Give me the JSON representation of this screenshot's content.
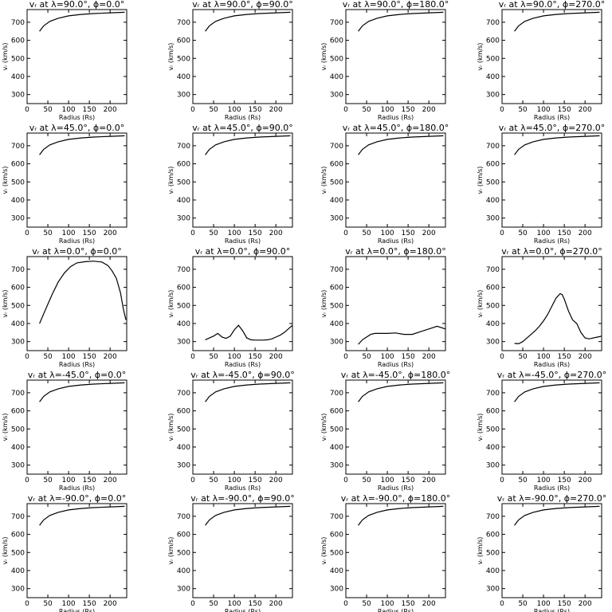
{
  "figure": {
    "y_tick_labels": [
      "300",
      "400",
      "500",
      "600",
      "700"
    ],
    "x_tick_labels": [
      "0",
      "50",
      "100",
      "150",
      "200"
    ],
    "x_axis_label": "Radius (Rs)",
    "y_axis_label": "vᵣ (km/s)"
  },
  "chart_data": [
    {
      "type": "line",
      "title": "vᵣ at λ=90.0°, ϕ=0.0°",
      "xlabel": "Radius (Rs)",
      "ylabel": "vᵣ (km/s)",
      "xlim": [
        0,
        240
      ],
      "ylim": [
        250,
        770
      ],
      "series": [
        {
          "x": [
            30,
            40,
            55,
            75,
            100,
            130,
            160,
            200,
            235
          ],
          "y": [
            650,
            680,
            705,
            722,
            735,
            743,
            748,
            752,
            755
          ]
        }
      ]
    },
    {
      "type": "line",
      "title": "vᵣ at λ=90.0°, ϕ=90.0°",
      "xlabel": "Radius (Rs)",
      "ylabel": "vᵣ (km/s)",
      "xlim": [
        0,
        240
      ],
      "ylim": [
        250,
        770
      ],
      "series": [
        {
          "x": [
            30,
            40,
            55,
            75,
            100,
            130,
            160,
            200,
            235
          ],
          "y": [
            650,
            680,
            705,
            722,
            735,
            743,
            748,
            752,
            755
          ]
        }
      ]
    },
    {
      "type": "line",
      "title": "vᵣ at λ=90.0°, ϕ=180.0°",
      "xlabel": "Radius (Rs)",
      "ylabel": "vᵣ (km/s)",
      "xlim": [
        0,
        240
      ],
      "ylim": [
        250,
        770
      ],
      "series": [
        {
          "x": [
            30,
            40,
            55,
            75,
            100,
            130,
            160,
            200,
            235
          ],
          "y": [
            650,
            680,
            705,
            722,
            735,
            743,
            748,
            752,
            755
          ]
        }
      ]
    },
    {
      "type": "line",
      "title": "vᵣ at λ=90.0°, ϕ=270.0°",
      "xlabel": "Radius (Rs)",
      "ylabel": "vᵣ (km/s)",
      "xlim": [
        0,
        240
      ],
      "ylim": [
        250,
        770
      ],
      "series": [
        {
          "x": [
            30,
            40,
            55,
            75,
            100,
            130,
            160,
            200,
            235
          ],
          "y": [
            650,
            680,
            705,
            722,
            735,
            743,
            748,
            752,
            755
          ]
        }
      ]
    },
    {
      "type": "line",
      "title": "vᵣ at λ=45.0°, ϕ=0.0°",
      "xlabel": "Radius (Rs)",
      "ylabel": "vᵣ (km/s)",
      "xlim": [
        0,
        240
      ],
      "ylim": [
        250,
        770
      ],
      "series": [
        {
          "x": [
            30,
            40,
            55,
            75,
            100,
            130,
            160,
            200,
            235
          ],
          "y": [
            650,
            680,
            705,
            722,
            735,
            743,
            748,
            752,
            755
          ]
        }
      ]
    },
    {
      "type": "line",
      "title": "vᵣ at λ=45.0°, ϕ=90.0°",
      "xlabel": "Radius (Rs)",
      "ylabel": "vᵣ (km/s)",
      "xlim": [
        0,
        240
      ],
      "ylim": [
        250,
        770
      ],
      "series": [
        {
          "x": [
            30,
            40,
            55,
            75,
            100,
            130,
            160,
            200,
            235
          ],
          "y": [
            650,
            680,
            705,
            722,
            735,
            743,
            748,
            752,
            755
          ]
        }
      ]
    },
    {
      "type": "line",
      "title": "vᵣ at λ=45.0°, ϕ=180.0°",
      "xlabel": "Radius (Rs)",
      "ylabel": "vᵣ (km/s)",
      "xlim": [
        0,
        240
      ],
      "ylim": [
        250,
        770
      ],
      "series": [
        {
          "x": [
            30,
            40,
            55,
            75,
            100,
            130,
            160,
            200,
            235
          ],
          "y": [
            650,
            680,
            705,
            722,
            735,
            743,
            748,
            752,
            755
          ]
        }
      ]
    },
    {
      "type": "line",
      "title": "vᵣ at λ=45.0°, ϕ=270.0°",
      "xlabel": "Radius (Rs)",
      "ylabel": "vᵣ (km/s)",
      "xlim": [
        0,
        240
      ],
      "ylim": [
        250,
        770
      ],
      "series": [
        {
          "x": [
            30,
            40,
            55,
            75,
            100,
            130,
            160,
            200,
            235
          ],
          "y": [
            650,
            680,
            705,
            722,
            735,
            743,
            748,
            752,
            755
          ]
        }
      ]
    },
    {
      "type": "line",
      "title": "vᵣ at λ=0.0°, ϕ=0.0°",
      "xlabel": "Radius (Rs)",
      "ylabel": "vᵣ (km/s)",
      "xlim": [
        0,
        240
      ],
      "ylim": [
        250,
        770
      ],
      "series": [
        {
          "x": [
            30,
            45,
            60,
            75,
            90,
            105,
            120,
            140,
            160,
            180,
            195,
            205,
            215,
            225,
            232,
            238
          ],
          "y": [
            400,
            480,
            560,
            630,
            680,
            715,
            735,
            742,
            745,
            740,
            720,
            690,
            650,
            570,
            480,
            420
          ]
        }
      ]
    },
    {
      "type": "line",
      "title": "vᵣ at λ=0.0°, ϕ=90.0°",
      "xlabel": "Radius (Rs)",
      "ylabel": "vᵣ (km/s)",
      "xlim": [
        0,
        240
      ],
      "ylim": [
        250,
        770
      ],
      "series": [
        {
          "x": [
            30,
            40,
            50,
            60,
            70,
            80,
            90,
            100,
            110,
            120,
            130,
            140,
            150,
            160,
            170,
            180,
            190,
            200,
            210,
            220,
            230,
            240
          ],
          "y": [
            310,
            320,
            330,
            345,
            325,
            318,
            330,
            365,
            390,
            360,
            320,
            310,
            308,
            308,
            308,
            310,
            315,
            325,
            335,
            350,
            370,
            390
          ]
        }
      ]
    },
    {
      "type": "line",
      "title": "vᵣ at λ=0.0°, ϕ=180.0°",
      "xlabel": "Radius (Rs)",
      "ylabel": "vᵣ (km/s)",
      "xlim": [
        0,
        240
      ],
      "ylim": [
        250,
        770
      ],
      "series": [
        {
          "x": [
            30,
            40,
            50,
            60,
            70,
            80,
            100,
            120,
            140,
            160,
            180,
            200,
            220,
            240
          ],
          "y": [
            285,
            310,
            325,
            340,
            345,
            345,
            345,
            348,
            340,
            340,
            355,
            370,
            385,
            370
          ]
        }
      ]
    },
    {
      "type": "line",
      "title": "vᵣ at λ=0.0°, ϕ=270.0°",
      "xlabel": "Radius (Rs)",
      "ylabel": "vᵣ (km/s)",
      "xlim": [
        0,
        240
      ],
      "ylim": [
        250,
        770
      ],
      "series": [
        {
          "x": [
            30,
            40,
            50,
            60,
            70,
            80,
            90,
            100,
            110,
            120,
            130,
            140,
            145,
            150,
            160,
            170,
            180,
            190,
            200,
            210,
            220,
            230,
            240
          ],
          "y": [
            290,
            288,
            300,
            320,
            340,
            360,
            385,
            415,
            450,
            495,
            540,
            565,
            560,
            535,
            470,
            420,
            400,
            350,
            320,
            315,
            320,
            325,
            330
          ]
        }
      ]
    },
    {
      "type": "line",
      "title": "vᵣ at λ=-45.0°, ϕ=0.0°",
      "xlabel": "Radius (Rs)",
      "ylabel": "vᵣ (km/s)",
      "xlim": [
        0,
        240
      ],
      "ylim": [
        250,
        770
      ],
      "series": [
        {
          "x": [
            30,
            40,
            55,
            75,
            100,
            130,
            160,
            200,
            235
          ],
          "y": [
            650,
            680,
            705,
            722,
            735,
            743,
            748,
            752,
            755
          ]
        }
      ]
    },
    {
      "type": "line",
      "title": "vᵣ at λ=-45.0°, ϕ=90.0°",
      "xlabel": "Radius (Rs)",
      "ylabel": "vᵣ (km/s)",
      "xlim": [
        0,
        240
      ],
      "ylim": [
        250,
        770
      ],
      "series": [
        {
          "x": [
            30,
            40,
            55,
            75,
            100,
            130,
            160,
            200,
            235
          ],
          "y": [
            650,
            680,
            705,
            722,
            735,
            743,
            748,
            752,
            755
          ]
        }
      ]
    },
    {
      "type": "line",
      "title": "vᵣ at λ=-45.0°, ϕ=180.0°",
      "xlabel": "Radius (Rs)",
      "ylabel": "vᵣ (km/s)",
      "xlim": [
        0,
        240
      ],
      "ylim": [
        250,
        770
      ],
      "series": [
        {
          "x": [
            30,
            40,
            55,
            75,
            100,
            130,
            160,
            200,
            235
          ],
          "y": [
            650,
            680,
            705,
            722,
            735,
            743,
            748,
            752,
            755
          ]
        }
      ]
    },
    {
      "type": "line",
      "title": "vᵣ at λ=-45.0°, ϕ=270.0°",
      "xlabel": "Radius (Rs)",
      "ylabel": "vᵣ (km/s)",
      "xlim": [
        0,
        240
      ],
      "ylim": [
        250,
        770
      ],
      "series": [
        {
          "x": [
            30,
            40,
            55,
            75,
            100,
            130,
            160,
            200,
            235
          ],
          "y": [
            650,
            680,
            705,
            722,
            735,
            743,
            748,
            752,
            755
          ]
        }
      ]
    },
    {
      "type": "line",
      "title": "vᵣ at λ=-90.0°, ϕ=0.0°",
      "xlabel": "Radius (Rs)",
      "ylabel": "vᵣ (km/s)",
      "xlim": [
        0,
        240
      ],
      "ylim": [
        250,
        770
      ],
      "series": [
        {
          "x": [
            30,
            40,
            55,
            75,
            100,
            130,
            160,
            200,
            235
          ],
          "y": [
            650,
            680,
            705,
            722,
            735,
            743,
            748,
            752,
            755
          ]
        }
      ]
    },
    {
      "type": "line",
      "title": "vᵣ at λ=-90.0°, ϕ=90.0°",
      "xlabel": "Radius (Rs)",
      "ylabel": "vᵣ (km/s)",
      "xlim": [
        0,
        240
      ],
      "ylim": [
        250,
        770
      ],
      "series": [
        {
          "x": [
            30,
            40,
            55,
            75,
            100,
            130,
            160,
            200,
            235
          ],
          "y": [
            650,
            680,
            705,
            722,
            735,
            743,
            748,
            752,
            755
          ]
        }
      ]
    },
    {
      "type": "line",
      "title": "vᵣ at λ=-90.0°, ϕ=180.0°",
      "xlabel": "Radius (Rs)",
      "ylabel": "vᵣ (km/s)",
      "xlim": [
        0,
        240
      ],
      "ylim": [
        250,
        770
      ],
      "series": [
        {
          "x": [
            30,
            40,
            55,
            75,
            100,
            130,
            160,
            200,
            235
          ],
          "y": [
            650,
            680,
            705,
            722,
            735,
            743,
            748,
            752,
            755
          ]
        }
      ]
    },
    {
      "type": "line",
      "title": "vᵣ at λ=-90.0°, ϕ=270.0°",
      "xlabel": "Radius (Rs)",
      "ylabel": "vᵣ (km/s)",
      "xlim": [
        0,
        240
      ],
      "ylim": [
        250,
        770
      ],
      "series": [
        {
          "x": [
            30,
            40,
            55,
            75,
            100,
            130,
            160,
            200,
            235
          ],
          "y": [
            650,
            680,
            705,
            722,
            735,
            743,
            748,
            752,
            755
          ]
        }
      ]
    }
  ]
}
